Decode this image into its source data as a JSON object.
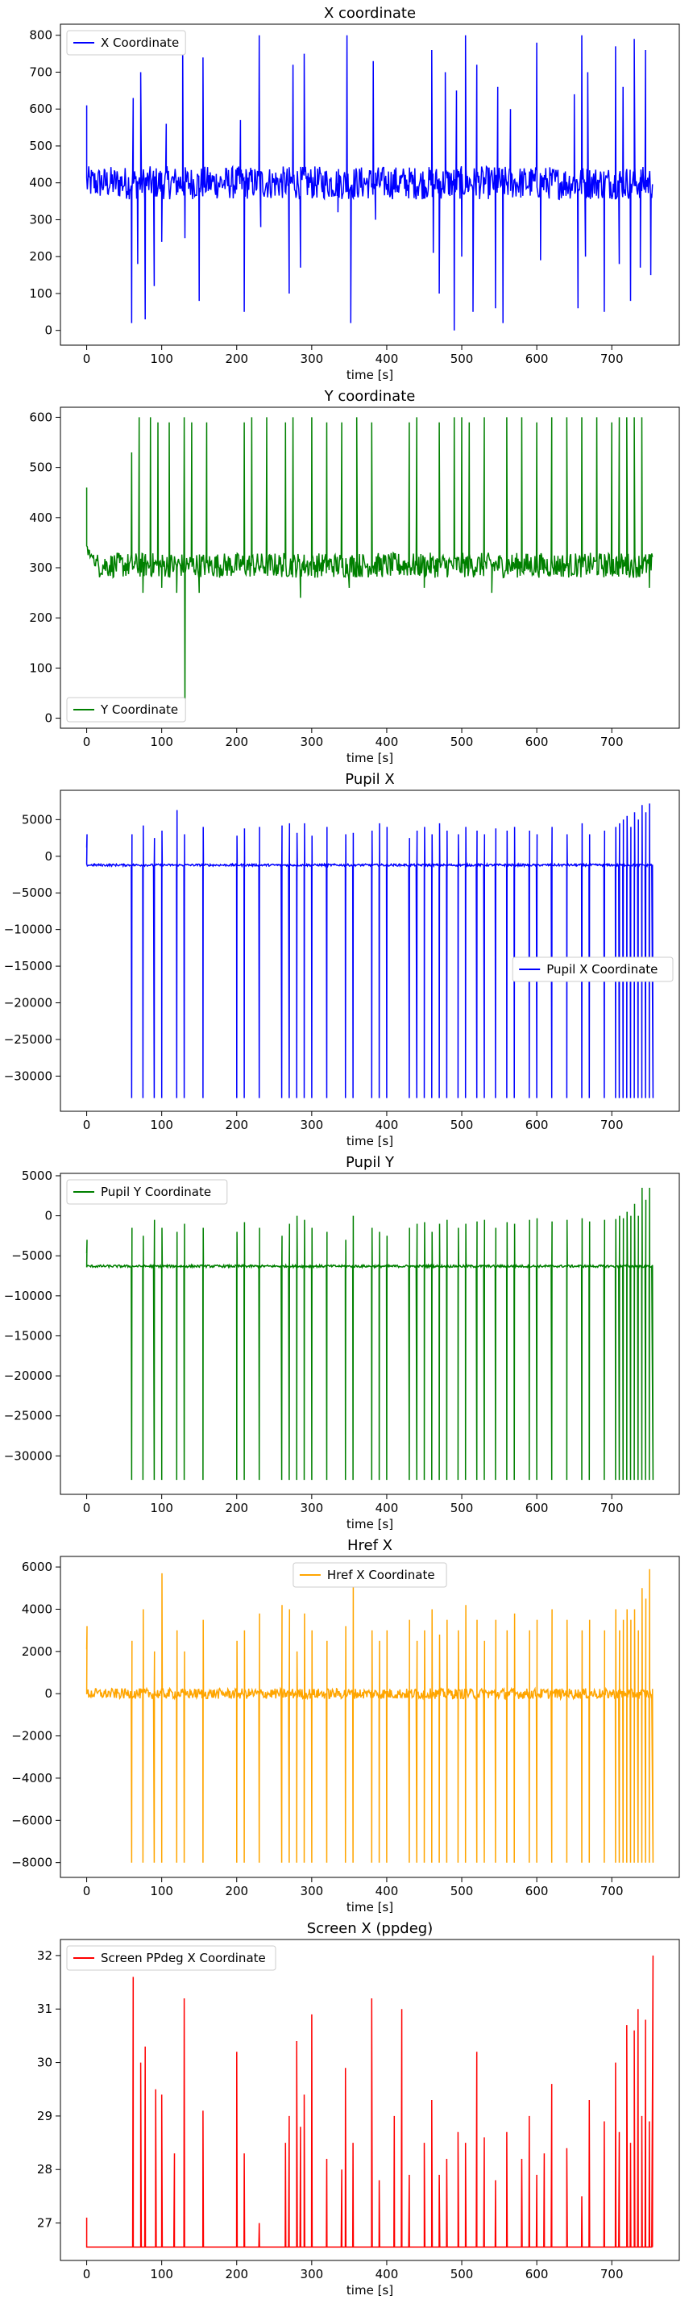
{
  "chart_data": [
    {
      "type": "line",
      "title": "X coordinate",
      "xlabel": "time [s]",
      "ylabel": "",
      "xlim": [
        -35,
        790
      ],
      "ylim": [
        -40,
        830
      ],
      "xticks": [
        0,
        100,
        200,
        300,
        400,
        500,
        600,
        700
      ],
      "yticks": [
        0,
        100,
        200,
        300,
        400,
        500,
        600,
        700,
        800
      ],
      "legend_position": "top-left",
      "series": [
        {
          "name": "X Coordinate",
          "color": "#0000ff",
          "baseline": 400,
          "noise": 45,
          "x": [
            0,
            60,
            62,
            68,
            72,
            78,
            90,
            100,
            106,
            128,
            131,
            150,
            155,
            205,
            210,
            230,
            232,
            270,
            275,
            285,
            290,
            335,
            347,
            352,
            382,
            385,
            460,
            462,
            470,
            478,
            490,
            493,
            500,
            505,
            515,
            520,
            545,
            548,
            555,
            565,
            600,
            605,
            650,
            655,
            660,
            665,
            668,
            690,
            705,
            710,
            715,
            725,
            730,
            738,
            745,
            752
          ],
          "y": [
            610,
            20,
            630,
            180,
            700,
            30,
            120,
            240,
            560,
            790,
            250,
            80,
            740,
            570,
            50,
            800,
            280,
            100,
            720,
            170,
            750,
            320,
            800,
            20,
            730,
            300,
            760,
            210,
            100,
            700,
            0,
            650,
            200,
            800,
            50,
            720,
            60,
            660,
            20,
            600,
            780,
            190,
            640,
            60,
            800,
            200,
            700,
            50,
            770,
            180,
            660,
            80,
            790,
            170,
            760,
            150
          ]
        }
      ]
    },
    {
      "type": "line",
      "title": "Y coordinate",
      "xlabel": "time [s]",
      "ylabel": "",
      "xlim": [
        -35,
        790
      ],
      "ylim": [
        -20,
        620
      ],
      "xticks": [
        0,
        100,
        200,
        300,
        400,
        500,
        600,
        700
      ],
      "yticks": [
        0,
        100,
        200,
        300,
        400,
        500,
        600
      ],
      "legend_position": "bottom-left",
      "series": [
        {
          "name": "Y Coordinate",
          "color": "#008000",
          "baseline": 305,
          "noise": 25,
          "x": [
            0,
            60,
            70,
            75,
            85,
            95,
            100,
            110,
            120,
            130,
            131,
            140,
            150,
            160,
            210,
            220,
            240,
            265,
            275,
            285,
            300,
            320,
            340,
            350,
            360,
            380,
            430,
            440,
            450,
            470,
            490,
            500,
            510,
            530,
            540,
            560,
            580,
            600,
            620,
            640,
            660,
            680,
            700,
            710,
            720,
            730,
            740,
            750
          ],
          "y": [
            460,
            530,
            600,
            250,
            600,
            590,
            260,
            590,
            250,
            600,
            5,
            590,
            250,
            590,
            590,
            600,
            600,
            590,
            600,
            240,
            600,
            590,
            590,
            260,
            600,
            590,
            590,
            600,
            260,
            590,
            600,
            600,
            590,
            600,
            250,
            600,
            600,
            590,
            600,
            600,
            600,
            600,
            590,
            600,
            600,
            600,
            600,
            260
          ]
        }
      ]
    },
    {
      "type": "line",
      "title": "Pupil X",
      "xlabel": "time [s]",
      "ylabel": "",
      "xlim": [
        -35,
        790
      ],
      "ylim": [
        -34800,
        9000
      ],
      "xticks": [
        0,
        100,
        200,
        300,
        400,
        500,
        600,
        700
      ],
      "yticks": [
        5000,
        0,
        -5000,
        -10000,
        -15000,
        -20000,
        -25000,
        -30000
      ],
      "legend_position": "center-right",
      "series": [
        {
          "name": "Pupil X Coordinate",
          "color": "#0000ff",
          "baseline": -1200,
          "noise": 150,
          "x": [
            0,
            60,
            75,
            90,
            100,
            120,
            130,
            155,
            200,
            210,
            230,
            260,
            270,
            280,
            290,
            300,
            320,
            345,
            355,
            380,
            390,
            400,
            430,
            440,
            450,
            460,
            470,
            480,
            495,
            505,
            520,
            530,
            545,
            560,
            570,
            590,
            600,
            620,
            640,
            660,
            670,
            690,
            705,
            710,
            715,
            720,
            725,
            730,
            735,
            740,
            745,
            750,
            755
          ],
          "y": [
            1200,
            -33000,
            -33000,
            -33000,
            -33000,
            -33000,
            -33000,
            -33000,
            -33000,
            -33000,
            -33000,
            -33000,
            -33000,
            -33000,
            -33000,
            -33000,
            -33000,
            -33000,
            -33000,
            -33000,
            -33000,
            -33000,
            -33000,
            -33000,
            -33000,
            -33000,
            -33000,
            -33000,
            -33000,
            -33000,
            -33000,
            -33000,
            -33000,
            -33000,
            -33000,
            -33000,
            -33000,
            -33000,
            -33000,
            -33000,
            -33000,
            -33000,
            -33000,
            -33000,
            -33000,
            -33000,
            -33000,
            -33000,
            -33000,
            -33000,
            -33000,
            -33000,
            -33000
          ],
          "peaks": [
            3000,
            3000,
            4200,
            2500,
            3500,
            6300,
            3000,
            4000,
            2800,
            3800,
            4000,
            4200,
            4500,
            3200,
            4500,
            2800,
            4000,
            3000,
            3200,
            3500,
            4500,
            4000,
            2500,
            3500,
            4000,
            3000,
            4500,
            3500,
            3000,
            4000,
            3500,
            3000,
            3800,
            3500,
            4000,
            3500,
            3000,
            4000,
            3000,
            4500,
            3000,
            3500,
            4000,
            4500,
            5000,
            5500,
            4000,
            6000,
            5000,
            7000,
            6000,
            7200
          ]
        }
      ]
    },
    {
      "type": "line",
      "title": "Pupil Y",
      "xlabel": "time [s]",
      "ylabel": "",
      "xlim": [
        -35,
        790
      ],
      "ylim": [
        -34800,
        5300
      ],
      "xticks": [
        0,
        100,
        200,
        300,
        400,
        500,
        600,
        700
      ],
      "yticks": [
        5000,
        0,
        -5000,
        -10000,
        -15000,
        -20000,
        -25000,
        -30000
      ],
      "legend_position": "top-left",
      "series": [
        {
          "name": "Pupil Y Coordinate",
          "color": "#008000",
          "baseline": -6300,
          "noise": 150,
          "x": [
            0,
            60,
            75,
            90,
            100,
            120,
            130,
            155,
            200,
            210,
            230,
            260,
            270,
            280,
            290,
            300,
            320,
            345,
            355,
            380,
            390,
            400,
            430,
            440,
            450,
            460,
            470,
            480,
            495,
            505,
            520,
            530,
            545,
            560,
            570,
            590,
            600,
            620,
            640,
            660,
            670,
            690,
            705,
            710,
            715,
            720,
            725,
            730,
            735,
            740,
            745,
            750,
            755
          ],
          "y": [
            -4700,
            -33000,
            -33000,
            -33000,
            -33000,
            -33000,
            -33000,
            -33000,
            -33000,
            -33000,
            -33000,
            -33000,
            -33000,
            -33000,
            -33000,
            -33000,
            -33000,
            -33000,
            -33000,
            -33000,
            -33000,
            -33000,
            -33000,
            -33000,
            -33000,
            -33000,
            -33000,
            -33000,
            -33000,
            -33000,
            -33000,
            -33000,
            -33000,
            -33000,
            -33000,
            -33000,
            -33000,
            -33000,
            -33000,
            -33000,
            -33000,
            -33000,
            -33000,
            -33000,
            -33000,
            -33000,
            -33000,
            -33000,
            -33000,
            -33000,
            -33000,
            -33000,
            -33000
          ],
          "peaks": [
            -3000,
            -1500,
            -2500,
            -500,
            -1500,
            -2000,
            -1000,
            -1500,
            -2000,
            -800,
            -1500,
            -2500,
            -1000,
            0,
            -500,
            -1500,
            -2000,
            -3000,
            0,
            -1500,
            -2000,
            -2500,
            -1500,
            -1000,
            -800,
            -2000,
            -1000,
            -500,
            -1500,
            -1000,
            -700,
            -500,
            -1500,
            -800,
            -1000,
            -500,
            -300,
            -700,
            -500,
            -300,
            -700,
            -500,
            -400,
            0,
            -300,
            500,
            0,
            1500,
            0,
            3500,
            2000,
            3500
          ]
        }
      ]
    },
    {
      "type": "line",
      "title": "Href X",
      "xlabel": "time [s]",
      "ylabel": "",
      "xlim": [
        -35,
        790
      ],
      "ylim": [
        -8700,
        6500
      ],
      "xticks": [
        0,
        100,
        200,
        300,
        400,
        500,
        600,
        700
      ],
      "yticks": [
        6000,
        4000,
        2000,
        0,
        -2000,
        -4000,
        -6000,
        -8000
      ],
      "legend_position": "top-center",
      "series": [
        {
          "name": "Href X Coordinate",
          "color": "#ffa500",
          "baseline": 0,
          "noise": 250,
          "x": [
            0,
            60,
            75,
            90,
            100,
            120,
            130,
            155,
            200,
            210,
            230,
            260,
            270,
            280,
            290,
            300,
            320,
            345,
            355,
            380,
            390,
            400,
            430,
            440,
            450,
            460,
            470,
            480,
            495,
            505,
            520,
            530,
            545,
            560,
            570,
            590,
            600,
            620,
            640,
            660,
            670,
            690,
            705,
            710,
            715,
            720,
            725,
            730,
            735,
            740,
            745,
            750,
            755
          ],
          "y": [
            2100,
            -8000,
            -8000,
            -8000,
            -8000,
            -8000,
            -8000,
            -8000,
            -8000,
            -8000,
            -8000,
            -8000,
            -8000,
            -8000,
            -8000,
            -8000,
            -8000,
            -8000,
            -8000,
            -8000,
            -8000,
            -8000,
            -8000,
            -8000,
            -8000,
            -8000,
            -8000,
            -8000,
            -8000,
            -8000,
            -8000,
            -8000,
            -8000,
            -8000,
            -8000,
            -8000,
            -8000,
            -8000,
            -8000,
            -8000,
            -8000,
            -8000,
            -8000,
            -8000,
            -8000,
            -8000,
            -8000,
            -8000,
            -8000,
            -8000,
            -8000,
            -8000,
            -8000
          ],
          "peaks": [
            3200,
            2500,
            4000,
            2000,
            5700,
            3000,
            2000,
            3500,
            2500,
            3000,
            3800,
            4200,
            4000,
            2000,
            3800,
            3000,
            2500,
            3200,
            5300,
            3000,
            2500,
            3000,
            3500,
            2500,
            3000,
            4000,
            2800,
            3500,
            3000,
            4200,
            3500,
            2500,
            3500,
            3000,
            3800,
            3000,
            3500,
            4000,
            3500,
            3000,
            3500,
            3000,
            4000,
            3000,
            3500,
            4000,
            3500,
            4000,
            3000,
            5000,
            4500,
            5900
          ]
        }
      ]
    },
    {
      "type": "line",
      "title": "Screen X (ppdeg)",
      "xlabel": "time [s]",
      "ylabel": "",
      "xlim": [
        -35,
        790
      ],
      "ylim": [
        26.3,
        32.3
      ],
      "xticks": [
        0,
        100,
        200,
        300,
        400,
        500,
        600,
        700
      ],
      "yticks": [
        32,
        31,
        30,
        29,
        28,
        27
      ],
      "legend_position": "top-left",
      "series": [
        {
          "name": "Screen PPdeg X Coordinate",
          "color": "#ff0000",
          "baseline": 26.55,
          "noise": 0,
          "x": [
            0,
            62,
            72,
            78,
            92,
            100,
            117,
            130,
            155,
            200,
            210,
            230,
            265,
            270,
            280,
            285,
            290,
            300,
            320,
            340,
            345,
            355,
            380,
            390,
            410,
            420,
            430,
            450,
            460,
            470,
            480,
            495,
            505,
            520,
            530,
            545,
            560,
            580,
            590,
            600,
            610,
            620,
            640,
            660,
            670,
            690,
            705,
            710,
            720,
            725,
            730,
            735,
            740,
            745,
            750,
            755
          ],
          "y": [
            27.1,
            31.6,
            30.0,
            30.3,
            29.5,
            29.4,
            28.3,
            31.2,
            29.1,
            30.2,
            28.3,
            27.0,
            28.5,
            29.0,
            30.4,
            28.8,
            29.4,
            30.9,
            28.2,
            28.0,
            29.9,
            28.5,
            31.2,
            27.8,
            29.0,
            31.0,
            27.9,
            28.5,
            29.3,
            27.9,
            28.2,
            28.7,
            28.5,
            30.2,
            28.6,
            27.8,
            28.7,
            28.2,
            29.0,
            27.9,
            28.3,
            29.6,
            28.4,
            27.5,
            29.3,
            28.9,
            30.0,
            28.7,
            30.7,
            28.5,
            30.6,
            31.0,
            29.0,
            30.8,
            28.9,
            32.0
          ]
        }
      ]
    }
  ]
}
